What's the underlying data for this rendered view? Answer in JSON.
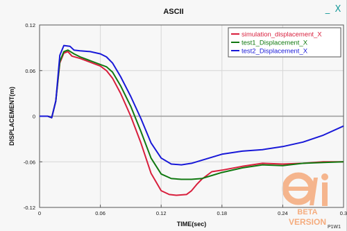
{
  "window": {
    "title": "ASCII",
    "minimize_glyph": "_",
    "close_glyph": "X"
  },
  "corner_label": "P1W1",
  "watermark": {
    "line1": "BETA",
    "line2": "VERSION",
    "color": "#f08040"
  },
  "chart_data": {
    "type": "line",
    "title": "ASCII",
    "xlabel": "TIME(sec)",
    "ylabel": "DISPLACEMENT(m)",
    "xlim": [
      0,
      0.3
    ],
    "ylim": [
      -0.12,
      0.12
    ],
    "x_ticks": [
      0,
      0.06,
      0.12,
      0.18,
      0.24,
      0.3
    ],
    "x_tick_labels": [
      "0",
      "0.06",
      "0.12",
      "0.18",
      "0.24",
      "0.3"
    ],
    "y_ticks": [
      -0.12,
      -0.06,
      0,
      0.06,
      0.12
    ],
    "y_tick_labels": [
      "-0.12",
      "-0.06",
      "0",
      "0.06",
      "0.12"
    ],
    "grid": true,
    "legend_position": "top-right",
    "series": [
      {
        "name": "simulation_displacement_X",
        "color": "#d81e3c",
        "x": [
          0,
          0.008,
          0.012,
          0.016,
          0.02,
          0.024,
          0.028,
          0.032,
          0.04,
          0.05,
          0.06,
          0.066,
          0.072,
          0.08,
          0.09,
          0.1,
          0.11,
          0.12,
          0.128,
          0.135,
          0.145,
          0.15,
          0.155,
          0.16,
          0.17,
          0.18,
          0.2,
          0.22,
          0.24,
          0.26,
          0.28,
          0.3
        ],
        "y": [
          0,
          0,
          -0.002,
          0.02,
          0.07,
          0.083,
          0.085,
          0.079,
          0.076,
          0.071,
          0.066,
          0.06,
          0.05,
          0.03,
          0,
          -0.035,
          -0.075,
          -0.098,
          -0.103,
          -0.104,
          -0.103,
          -0.098,
          -0.09,
          -0.083,
          -0.073,
          -0.071,
          -0.066,
          -0.062,
          -0.063,
          -0.062,
          -0.06,
          -0.06
        ]
      },
      {
        "name": "test1_Displacement_X",
        "color": "#107810",
        "x": [
          0,
          0.008,
          0.012,
          0.016,
          0.02,
          0.024,
          0.028,
          0.034,
          0.04,
          0.05,
          0.06,
          0.066,
          0.072,
          0.08,
          0.09,
          0.1,
          0.11,
          0.12,
          0.13,
          0.14,
          0.15,
          0.16,
          0.17,
          0.18,
          0.2,
          0.22,
          0.24,
          0.26,
          0.28,
          0.3
        ],
        "y": [
          0,
          0,
          -0.002,
          0.02,
          0.072,
          0.085,
          0.087,
          0.082,
          0.078,
          0.073,
          0.068,
          0.065,
          0.058,
          0.04,
          0.013,
          -0.02,
          -0.055,
          -0.076,
          -0.082,
          -0.083,
          -0.083,
          -0.082,
          -0.078,
          -0.074,
          -0.068,
          -0.064,
          -0.065,
          -0.062,
          -0.061,
          -0.06
        ]
      },
      {
        "name": "test2_Displacement_X",
        "color": "#1818d8",
        "x": [
          0,
          0.008,
          0.012,
          0.016,
          0.02,
          0.024,
          0.03,
          0.034,
          0.04,
          0.05,
          0.06,
          0.066,
          0.072,
          0.08,
          0.09,
          0.1,
          0.11,
          0.12,
          0.13,
          0.14,
          0.15,
          0.16,
          0.17,
          0.18,
          0.2,
          0.22,
          0.24,
          0.26,
          0.28,
          0.3
        ],
        "y": [
          0,
          0,
          -0.002,
          0.02,
          0.08,
          0.093,
          0.092,
          0.087,
          0.086,
          0.085,
          0.082,
          0.078,
          0.07,
          0.052,
          0.026,
          -0.003,
          -0.035,
          -0.055,
          -0.063,
          -0.064,
          -0.062,
          -0.058,
          -0.054,
          -0.05,
          -0.046,
          -0.044,
          -0.04,
          -0.034,
          -0.025,
          -0.013
        ]
      }
    ]
  }
}
